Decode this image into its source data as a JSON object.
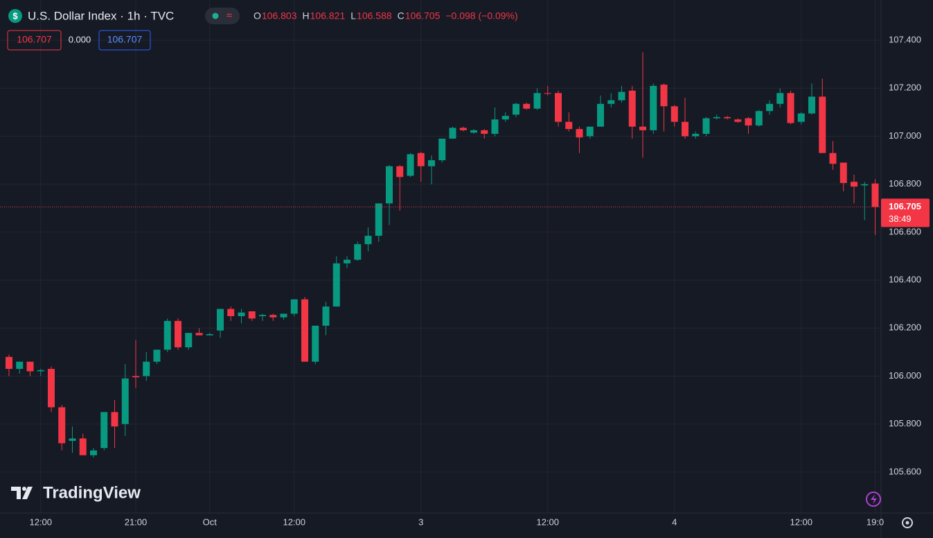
{
  "header": {
    "title": "U.S. Dollar Index · 1h · TVC",
    "legend": [
      {
        "label": "O",
        "value": "106.803"
      },
      {
        "label": "H",
        "value": "106.821"
      },
      {
        "label": "L",
        "value": "106.588"
      },
      {
        "label": "C",
        "value": "106.705"
      }
    ],
    "change": "−0.098 (−0.09%)",
    "inputs": [
      "106.707",
      "0.000",
      "106.707"
    ]
  },
  "watermark": "TradingView",
  "chart_data": {
    "type": "candlestick",
    "categories": [
      null,
      null,
      null,
      "12:00",
      null,
      null,
      null,
      null,
      null,
      null,
      null,
      null,
      "21:00",
      null,
      null,
      null,
      null,
      null,
      null,
      "Oct",
      null,
      null,
      null,
      null,
      null,
      null,
      null,
      "12:00",
      null,
      null,
      null,
      null,
      null,
      null,
      null,
      null,
      null,
      null,
      null,
      "3",
      null,
      null,
      null,
      null,
      null,
      null,
      null,
      null,
      null,
      null,
      null,
      "12:00",
      null,
      null,
      null,
      null,
      null,
      null,
      null,
      null,
      null,
      null,
      null,
      "4",
      null,
      null,
      null,
      null,
      null,
      null,
      null,
      null,
      null,
      null,
      null,
      "12:00",
      null,
      null,
      null,
      null,
      null,
      null,
      "19:0"
    ],
    "open": [
      106.08,
      106.03,
      106.06,
      106.02,
      106.03,
      105.87,
      105.73,
      105.74,
      105.67,
      105.7,
      105.85,
      105.8,
      106.0,
      106.0,
      106.06,
      106.11,
      106.23,
      106.12,
      106.18,
      106.17,
      106.19,
      106.28,
      106.25,
      106.27,
      106.25,
      106.255,
      106.245,
      106.26,
      106.32,
      106.06,
      106.21,
      106.29,
      106.47,
      106.485,
      106.55,
      106.585,
      106.72,
      106.875,
      106.835,
      106.93,
      106.875,
      106.9,
      106.99,
      107.035,
      107.015,
      107.025,
      107.01,
      107.07,
      107.09,
      107.135,
      107.115,
      107.18,
      107.18,
      107.06,
      107.03,
      107.0,
      107.04,
      107.135,
      107.15,
      107.19,
      107.04,
      107.025,
      107.215,
      107.125,
      107.06,
      107.0,
      107.01,
      107.075,
      107.08,
      107.07,
      107.075,
      107.045,
      107.105,
      107.135,
      107.18,
      107.06,
      107.095,
      107.165,
      106.93,
      106.89,
      106.81,
      106.795,
      106.803
    ],
    "high": [
      106.09,
      106.06,
      106.06,
      106.03,
      106.04,
      105.88,
      105.79,
      105.76,
      105.7,
      105.84,
      105.9,
      106.05,
      106.15,
      106.1,
      106.11,
      106.24,
      106.24,
      106.18,
      106.2,
      106.18,
      106.28,
      106.29,
      106.28,
      106.27,
      106.26,
      106.26,
      106.26,
      106.32,
      106.33,
      106.21,
      106.31,
      106.5,
      106.5,
      106.56,
      106.62,
      106.72,
      106.88,
      106.88,
      106.93,
      106.935,
      106.92,
      106.99,
      107.04,
      107.04,
      107.03,
      107.03,
      107.12,
      107.1,
      107.14,
      107.14,
      107.2,
      107.21,
      107.19,
      107.1,
      107.04,
      107.04,
      107.17,
      107.18,
      107.21,
      107.21,
      107.35,
      107.22,
      107.22,
      107.13,
      107.16,
      107.02,
      107.08,
      107.09,
      107.085,
      107.075,
      107.08,
      107.11,
      107.15,
      107.2,
      107.19,
      107.1,
      107.22,
      107.24,
      106.98,
      106.89,
      106.84,
      106.81,
      106.821
    ],
    "low": [
      106.0,
      106.01,
      106.0,
      106.0,
      105.85,
      105.69,
      105.68,
      105.67,
      105.66,
      105.69,
      105.7,
      105.75,
      105.95,
      105.98,
      106.05,
      106.1,
      106.11,
      106.11,
      106.17,
      106.17,
      106.16,
      106.23,
      106.22,
      106.23,
      106.23,
      106.23,
      106.235,
      106.25,
      106.06,
      106.05,
      106.17,
      106.29,
      106.45,
      106.48,
      106.52,
      106.56,
      106.63,
      106.69,
      106.83,
      106.81,
      106.8,
      106.89,
      106.99,
      107.02,
      107.01,
      106.99,
      107.0,
      107.06,
      107.08,
      107.11,
      107.11,
      107.17,
      107.04,
      107.02,
      106.93,
      106.99,
      107.04,
      107.12,
      107.14,
      106.99,
      106.91,
      107.01,
      107.02,
      107.04,
      106.99,
      106.99,
      107.0,
      107.07,
      107.07,
      107.055,
      107.01,
      107.04,
      107.09,
      107.12,
      107.05,
      107.05,
      107.09,
      106.93,
      106.86,
      106.77,
      106.72,
      106.65,
      106.588
    ],
    "close": [
      106.03,
      106.06,
      106.02,
      106.025,
      105.87,
      105.72,
      105.74,
      105.67,
      105.69,
      105.85,
      105.79,
      105.99,
      105.995,
      106.06,
      106.11,
      106.23,
      106.12,
      106.18,
      106.17,
      106.175,
      106.28,
      106.25,
      106.265,
      106.24,
      106.255,
      106.245,
      106.26,
      106.32,
      106.06,
      106.21,
      106.29,
      106.47,
      106.485,
      106.55,
      106.585,
      106.72,
      106.875,
      106.83,
      106.925,
      106.875,
      106.9,
      106.99,
      107.035,
      107.025,
      107.025,
      107.01,
      107.07,
      107.085,
      107.135,
      107.115,
      107.18,
      107.178,
      107.06,
      107.03,
      106.995,
      107.04,
      107.135,
      107.15,
      107.185,
      107.04,
      107.025,
      107.21,
      107.125,
      107.06,
      107.0,
      107.01,
      107.075,
      107.08,
      107.075,
      107.06,
      107.045,
      107.105,
      107.135,
      107.18,
      107.055,
      107.095,
      107.165,
      106.93,
      106.885,
      106.805,
      106.79,
      106.8,
      106.705
    ],
    "up_color": "#089981",
    "down_color": "#f23645",
    "ylim": [
      105.429,
      107.568
    ],
    "yticks": [
      {
        "value": 105.6,
        "label": "105.600"
      },
      {
        "value": 105.8,
        "label": "105.800"
      },
      {
        "value": 106.0,
        "label": "106.000"
      },
      {
        "value": 106.2,
        "label": "106.200"
      },
      {
        "value": 106.4,
        "label": "106.400"
      },
      {
        "value": 106.6,
        "label": "106.600"
      },
      {
        "value": 106.8,
        "label": "106.800"
      },
      {
        "value": 107.0,
        "label": "107.000"
      },
      {
        "value": 107.2,
        "label": "107.200"
      },
      {
        "value": 107.4,
        "label": "107.400"
      }
    ],
    "last_price": {
      "value": 106.705,
      "label": "106.705"
    },
    "countdown": "38:49",
    "grid": true
  }
}
